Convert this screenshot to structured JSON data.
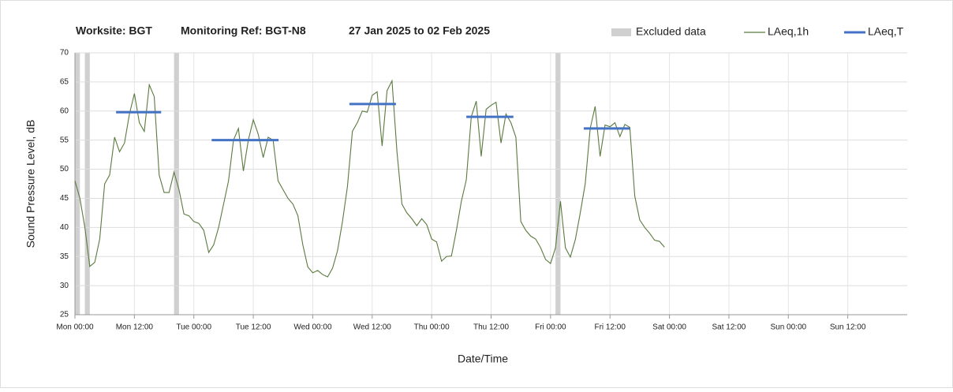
{
  "chart_data": {
    "type": "line",
    "title_parts": [
      "Worksite: BGT",
      "Monitoring Ref: BGT-N8",
      "27 Jan 2025 to 02 Feb 2025"
    ],
    "xlabel": "Date/Time",
    "ylabel": "Sound Pressure Level, dB",
    "xlim": [
      0,
      168
    ],
    "ylim": [
      25,
      70
    ],
    "yticks": [
      25,
      30,
      35,
      40,
      45,
      50,
      55,
      60,
      65,
      70
    ],
    "xticks": [
      {
        "value": 0,
        "label": "Mon 00:00"
      },
      {
        "value": 12,
        "label": "Mon 12:00"
      },
      {
        "value": 24,
        "label": "Tue 00:00"
      },
      {
        "value": 36,
        "label": "Tue 12:00"
      },
      {
        "value": 48,
        "label": "Wed 00:00"
      },
      {
        "value": 60,
        "label": "Wed 12:00"
      },
      {
        "value": 72,
        "label": "Thu 00:00"
      },
      {
        "value": 84,
        "label": "Thu 12:00"
      },
      {
        "value": 96,
        "label": "Fri 00:00"
      },
      {
        "value": 108,
        "label": "Fri 12:00"
      },
      {
        "value": 120,
        "label": "Sat 00:00"
      },
      {
        "value": 132,
        "label": "Sat 12:00"
      },
      {
        "value": 144,
        "label": "Sun 00:00"
      },
      {
        "value": 156,
        "label": "Sun 12:00"
      }
    ],
    "grid": true,
    "excluded": {
      "name": "Excluded data",
      "color": "#d0d0d0",
      "x_ranges": [
        [
          0,
          1
        ],
        [
          2,
          3
        ],
        [
          20,
          21
        ],
        [
          97,
          98
        ]
      ]
    },
    "series": [
      {
        "name": "LAeq,1h",
        "color": "#5a7a3e",
        "x": [
          0,
          1,
          2,
          3,
          4,
          5,
          6,
          7,
          8,
          9,
          10,
          11,
          12,
          13,
          14,
          15,
          16,
          17,
          18,
          19,
          20,
          21,
          22,
          23,
          24,
          25,
          26,
          27,
          28,
          29,
          30,
          31,
          32,
          33,
          34,
          35,
          36,
          37,
          38,
          39,
          40,
          41,
          42,
          43,
          44,
          45,
          46,
          47,
          48,
          49,
          50,
          51,
          52,
          53,
          54,
          55,
          56,
          57,
          58,
          59,
          60,
          61,
          62,
          63,
          64,
          65,
          66,
          67,
          68,
          69,
          70,
          71,
          72,
          73,
          74,
          75,
          76,
          77,
          78,
          79,
          80,
          81,
          82,
          83,
          84,
          85,
          86,
          87,
          88,
          89,
          90,
          91,
          92,
          93,
          94,
          95,
          96,
          97,
          98,
          99,
          100,
          101,
          102,
          103,
          104,
          105,
          106,
          107,
          108,
          109,
          110,
          111,
          112,
          113,
          114,
          115,
          116,
          117,
          118,
          119
        ],
        "values": [
          48,
          45,
          40,
          33.3,
          34,
          38,
          47.5,
          49,
          55.5,
          53,
          54.5,
          59.5,
          63,
          58,
          56.5,
          64.5,
          62.5,
          49,
          46,
          46,
          49.5,
          46.5,
          42.3,
          42,
          41,
          40.7,
          39.5,
          35.7,
          37,
          40,
          44,
          48,
          55,
          57,
          49.7,
          55,
          58.5,
          56,
          52,
          55.5,
          55,
          48,
          46.5,
          45,
          44,
          42,
          37,
          33.2,
          32.2,
          32.6,
          31.9,
          31.5,
          33,
          36,
          41,
          47,
          56.5,
          58,
          60,
          59.8,
          62.7,
          63.3,
          54,
          63.5,
          65.2,
          53,
          44,
          42.5,
          41.5,
          40.3,
          41.5,
          40.5,
          38,
          37.5,
          34.2,
          35,
          35.1,
          39.5,
          44.5,
          48.2,
          59,
          61.7,
          52.2,
          60.3,
          61,
          61.5,
          54.5,
          59.5,
          58,
          55.5,
          41,
          39.5,
          38.5,
          38,
          36.5,
          34.5,
          33.8,
          36.5,
          44.5,
          36.5,
          34.9,
          37.9,
          42.5,
          47.5,
          57,
          60.8,
          52.2,
          57.6,
          57.3,
          58,
          55.6,
          57.7,
          57.2,
          45.4,
          41.3,
          40,
          39,
          37.8,
          37.6,
          36.6
        ]
      },
      {
        "name": "LAeq,T",
        "color": "#4472c4",
        "x_ranges": [
          [
            8.3,
            17.4
          ],
          [
            27.6,
            41.1
          ],
          [
            55.4,
            64.8
          ],
          [
            79,
            88.5
          ],
          [
            102.7,
            112
          ]
        ],
        "values": [
          59.8,
          55,
          61.2,
          59,
          57
        ]
      }
    ]
  }
}
